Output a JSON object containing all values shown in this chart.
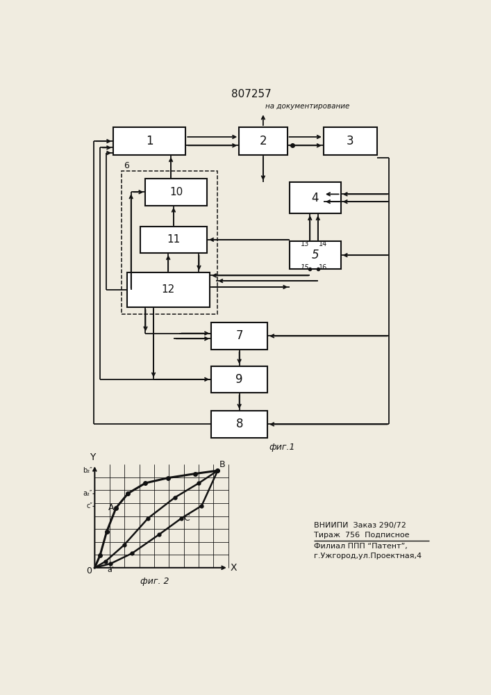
{
  "title": "807257",
  "fig1_label": "фиг.1",
  "fig2_label": "фиг. 2",
  "doc_label": "на документирование",
  "footer_line1": "ВНИИПИ  Заказ 290/72",
  "footer_line2": "Тираж  756  Подписное",
  "footer_line3": "Филиал ППП “Патент”,",
  "footer_line4": "г.Ужгород,ул.Проектная,4",
  "bg_color": "#f0ece0",
  "line_color": "#111111",
  "box_color": "#ffffff"
}
